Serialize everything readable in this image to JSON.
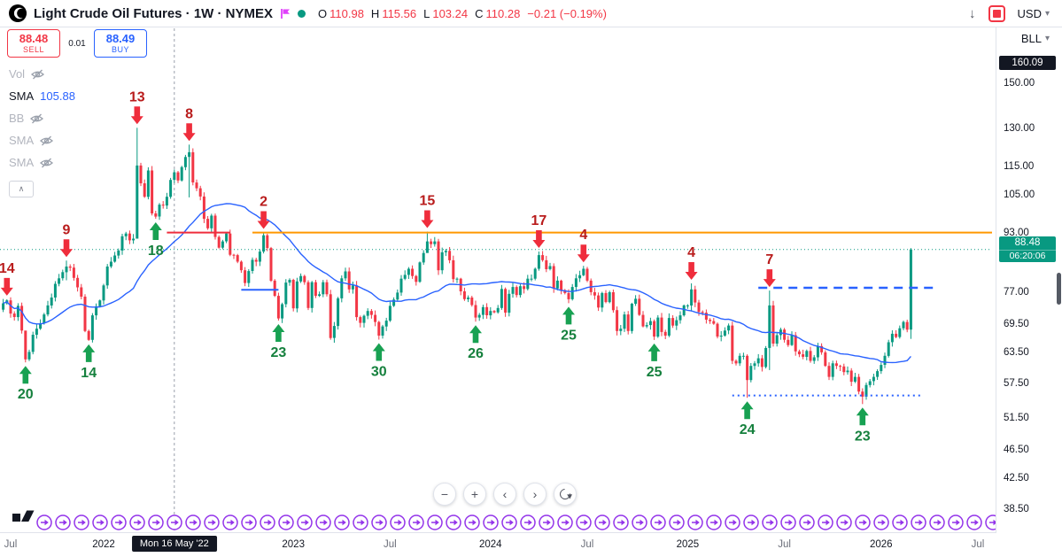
{
  "topbar": {
    "symbol_title": "Light Crude Oil Futures · 1W · NYMEX",
    "ohlc": {
      "o_label": "O",
      "o": "110.98",
      "h_label": "H",
      "h": "115.56",
      "l_label": "L",
      "l": "103.24",
      "c_label": "C",
      "c": "110.28",
      "change": "−0.21 (−0.19%)"
    },
    "currency": "USD"
  },
  "unit_select": {
    "value": "BLL"
  },
  "trade_panel": {
    "sell_price": "88.48",
    "sell_label": "SELL",
    "spread": "0.01",
    "buy_price": "88.49",
    "buy_label": "BUY"
  },
  "legend": {
    "rows": [
      {
        "label": "Vol",
        "value": "",
        "hidden": true
      },
      {
        "label": "SMA",
        "value": "105.88",
        "hidden": false
      },
      {
        "label": "BB",
        "value": "",
        "hidden": true
      },
      {
        "label": "SMA",
        "value": "",
        "hidden": true
      },
      {
        "label": "SMA",
        "value": "",
        "hidden": true
      }
    ]
  },
  "price_scale": {
    "top_badge": {
      "text": "160.09",
      "value": 160.09
    },
    "ticks": [
      {
        "label": "150.00",
        "value": 150
      },
      {
        "label": "130.00",
        "value": 130
      },
      {
        "label": "115.00",
        "value": 115
      },
      {
        "label": "105.00",
        "value": 105
      },
      {
        "label": "93.00",
        "value": 93
      },
      {
        "label": "77.00",
        "value": 77
      },
      {
        "label": "69.50",
        "value": 69.5
      },
      {
        "label": "63.50",
        "value": 63.5
      },
      {
        "label": "57.50",
        "value": 57.5
      },
      {
        "label": "51.50",
        "value": 51.5
      },
      {
        "label": "46.50",
        "value": 46.5
      },
      {
        "label": "42.50",
        "value": 42.5
      },
      {
        "label": "38.50",
        "value": 38.5
      }
    ],
    "current": {
      "price_text": "88.48",
      "countdown": "06:20:06"
    }
  },
  "time_scale": {
    "labels": [
      {
        "text": "Jul",
        "index": 2,
        "kind": "minor"
      },
      {
        "text": "2022",
        "index": 27,
        "kind": "major"
      },
      {
        "text": "2023",
        "index": 78,
        "kind": "major"
      },
      {
        "text": "Jul",
        "index": 104,
        "kind": "minor"
      },
      {
        "text": "2024",
        "index": 131,
        "kind": "major"
      },
      {
        "text": "Jul",
        "index": 157,
        "kind": "minor"
      },
      {
        "text": "2025",
        "index": 184,
        "kind": "major"
      },
      {
        "text": "Jul",
        "index": 210,
        "kind": "minor"
      },
      {
        "text": "2026",
        "index": 236,
        "kind": "major"
      },
      {
        "text": "Jul",
        "index": 262,
        "kind": "minor"
      }
    ],
    "crosshair": {
      "text": "Mon 16 May '22",
      "index": 46
    }
  },
  "nav": {
    "zoom_out": "−",
    "zoom_in": "+",
    "scroll_left": "‹",
    "scroll_right": "›"
  },
  "icons": {
    "download": "↓",
    "chevron_down": "▾",
    "chevron_up": "∧"
  },
  "events_row": {
    "name": "contract-rollover-event",
    "count": 52,
    "color": "#9333ea"
  },
  "chart_data": {
    "type": "candlestick",
    "symbol": "Light Crude Oil Futures",
    "exchange": "NYMEX",
    "interval": "1W",
    "scale": "log",
    "price_range": [
      37.0,
      166.6
    ],
    "first_open": 73.0,
    "current_price": 88.48,
    "sma_period": 30,
    "weekly_closes": [
      74.5,
      75.2,
      72.1,
      71.3,
      73.9,
      68.3,
      62.3,
      63.8,
      67.4,
      68.7,
      69.9,
      71.9,
      74.0,
      75.9,
      79.3,
      80.7,
      82.3,
      83.8,
      83.5,
      80.8,
      78.4,
      76.1,
      68.2,
      66.3,
      71.7,
      73.8,
      75.2,
      78.9,
      83.8,
      85.1,
      86.8,
      88.2,
      92.3,
      93.1,
      91.1,
      91.6,
      115.7,
      109.3,
      104.7,
      113.9,
      99.3,
      98.3,
      102.1,
      101.8,
      104.7,
      110.5,
      113.2,
      110.3,
      115.1,
      118.9,
      120.7,
      109.6,
      107.6,
      104.8,
      97.6,
      94.7,
      98.6,
      92.1,
      89.0,
      90.8,
      93.1,
      87.0,
      86.9,
      85.1,
      82.8,
      79.5,
      82.6,
      85.6,
      85.1,
      87.9,
      92.6,
      88.9,
      80.1,
      76.3,
      71.0,
      74.3,
      79.6,
      80.3,
      73.3,
      79.9,
      81.3,
      79.7,
      73.4,
      79.7,
      76.3,
      76.7,
      79.7,
      76.7,
      66.7,
      69.3,
      75.7,
      80.7,
      82.5,
      77.9,
      78.9,
      71.3,
      70.0,
      71.6,
      72.7,
      71.8,
      70.2,
      67.2,
      69.2,
      70.5,
      73.9,
      75.4,
      77.1,
      80.6,
      81.6,
      83.2,
      81.3,
      79.8,
      84.9,
      87.5,
      90.8,
      90.0,
      90.8,
      82.8,
      87.7,
      88.1,
      85.5,
      80.5,
      80.6,
      77.4,
      75.5,
      75.9,
      74.1,
      71.2,
      71.8,
      73.6,
      71.7,
      72.7,
      72.4,
      73.4,
      78.0,
      72.3,
      76.8,
      78.5,
      76.5,
      78.7,
      78.0,
      80.6,
      80.6,
      83.2,
      86.9,
      85.5,
      83.1,
      83.9,
      78.1,
      80.1,
      77.7,
      77.0,
      75.5,
      78.5,
      80.7,
      81.5,
      83.2,
      80.1,
      77.2,
      76.4,
      73.5,
      77.0,
      74.8,
      77.2,
      72.9,
      68.2,
      68.7,
      71.9,
      68.2,
      74.4,
      75.6,
      71.8,
      69.2,
      69.5,
      70.4,
      67.0,
      71.2,
      68.0,
      67.2,
      71.1,
      69.4,
      70.6,
      71.7,
      74.0,
      74.0,
      77.9,
      74.7,
      72.5,
      72.3,
      70.7,
      70.4,
      69.8,
      67.0,
      67.2,
      68.3,
      69.4,
      62.0,
      61.5,
      63.0,
      63.0,
      58.3,
      61.0,
      61.5,
      62.5,
      60.8,
      64.6,
      74.0,
      65.5,
      67.3,
      68.5,
      66.3,
      65.2,
      67.3,
      63.9,
      63.3,
      62.8,
      64.0,
      62.0,
      62.7,
      65.0,
      63.7,
      61.0,
      58.9,
      61.5,
      61.0,
      60.9,
      59.8,
      60.1,
      58.0,
      58.9,
      56.2,
      55.3,
      57.4,
      58.1,
      58.9,
      60.0,
      61.2,
      63.0,
      65.8,
      67.6,
      66.9,
      68.8,
      70.2,
      68.5,
      88.48
    ],
    "wick_overrides": {
      "6": [
        65.0,
        61.7
      ],
      "17": [
        85.4,
        80.2
      ],
      "36": [
        130.5,
        95.0
      ],
      "50": [
        123.7,
        104.5
      ],
      "114": [
        93.7,
        88.5
      ],
      "185": [
        79.4,
        72.6
      ],
      "200": [
        63.3,
        55.1
      ],
      "206": [
        77.6,
        60.2
      ],
      "231": [
        56.8,
        54.0
      ],
      "244": [
        88.9,
        66.5
      ]
    },
    "markers": [
      {
        "index": 1,
        "dir": "down",
        "label": "14"
      },
      {
        "index": 6,
        "dir": "up",
        "label": "20"
      },
      {
        "index": 17,
        "dir": "down",
        "label": "9"
      },
      {
        "index": 23,
        "dir": "up",
        "label": "14"
      },
      {
        "index": 36,
        "dir": "down",
        "label": "13"
      },
      {
        "index": 41,
        "dir": "up",
        "label": "18"
      },
      {
        "index": 50,
        "dir": "down",
        "label": "8"
      },
      {
        "index": 70,
        "dir": "down",
        "label": "2"
      },
      {
        "index": 74,
        "dir": "up",
        "label": "23"
      },
      {
        "index": 101,
        "dir": "up",
        "label": "30"
      },
      {
        "index": 114,
        "dir": "down",
        "label": "15"
      },
      {
        "index": 127,
        "dir": "up",
        "label": "26"
      },
      {
        "index": 144,
        "dir": "down",
        "label": "17"
      },
      {
        "index": 152,
        "dir": "up",
        "label": "25"
      },
      {
        "index": 156,
        "dir": "down",
        "label": "4"
      },
      {
        "index": 175,
        "dir": "up",
        "label": "25"
      },
      {
        "index": 185,
        "dir": "down",
        "label": "4"
      },
      {
        "index": 200,
        "dir": "up",
        "label": "24"
      },
      {
        "index": 206,
        "dir": "down",
        "label": "7"
      },
      {
        "index": 231,
        "dir": "up",
        "label": "23"
      }
    ],
    "lines": [
      {
        "style": "solid",
        "color": "#ff9800",
        "price": 93.4,
        "from": 67,
        "to": "end",
        "width": 2
      },
      {
        "style": "solid",
        "color": "#ef2d3c",
        "price": 93.4,
        "from": 44,
        "to": 61,
        "width": 2
      },
      {
        "style": "solid",
        "color": "#2962ff",
        "price": 77.8,
        "from": 64,
        "to": 74,
        "width": 2
      },
      {
        "style": "dashed",
        "color": "#2962ff",
        "price": 78.3,
        "from": 203,
        "to": 250,
        "width": 2.5
      },
      {
        "style": "dotted",
        "color": "#2962ff",
        "price": 55.5,
        "from": 196,
        "to": 247,
        "width": 2
      }
    ],
    "crosshair_index": 46,
    "colors": {
      "up": "#089981",
      "down": "#f23645",
      "sma": "#2962ff",
      "arrow_up": "#18a152",
      "arrow_down": "#ef2d3c",
      "num_up": "#15803d",
      "num_down": "#b91c1c"
    }
  }
}
